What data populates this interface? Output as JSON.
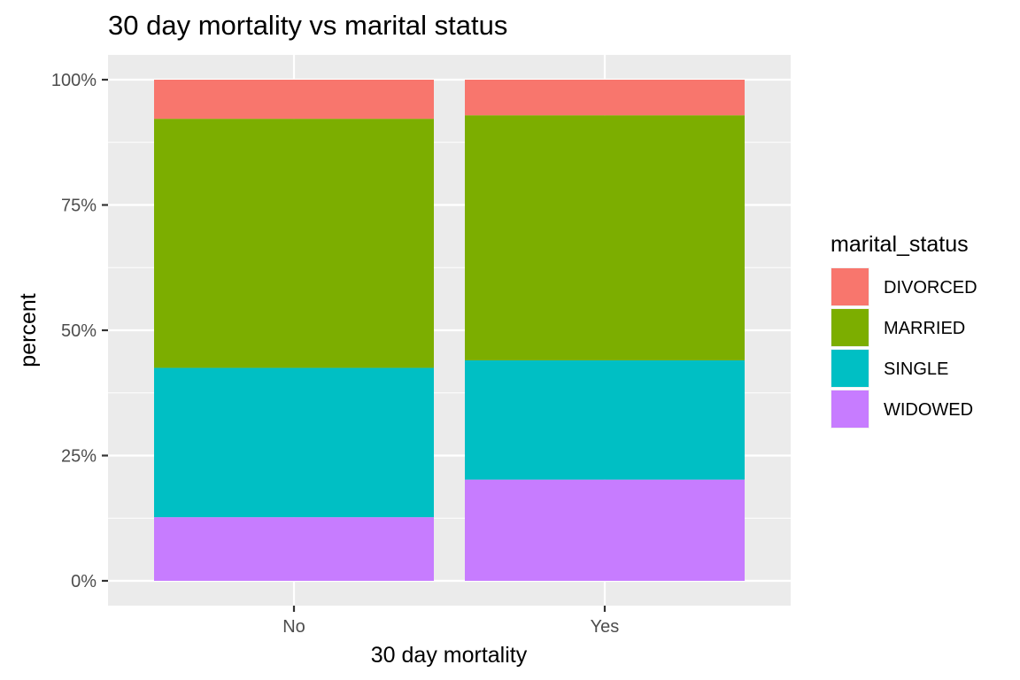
{
  "chart_data": {
    "type": "bar",
    "stacked": true,
    "title": "30 day mortality vs marital status",
    "xlabel": "30 day mortality",
    "ylabel": "percent",
    "categories": [
      "No",
      "Yes"
    ],
    "ylim": [
      0,
      1
    ],
    "y_ticks": [
      0,
      0.25,
      0.5,
      0.75,
      1
    ],
    "y_tick_labels": [
      "0%",
      "25%",
      "50%",
      "75%",
      "100%"
    ],
    "grid": true,
    "legend_title": "marital_status",
    "legend_position": "right",
    "stack_order_top_to_bottom": [
      "DIVORCED",
      "MARRIED",
      "SINGLE",
      "WIDOWED"
    ],
    "series": [
      {
        "name": "DIVORCED",
        "color": "#F8766D",
        "values": [
          0.078,
          0.071
        ]
      },
      {
        "name": "MARRIED",
        "color": "#7CAE00",
        "values": [
          0.497,
          0.489
        ]
      },
      {
        "name": "SINGLE",
        "color": "#00BFC4",
        "values": [
          0.298,
          0.238
        ]
      },
      {
        "name": "WIDOWED",
        "color": "#C77CFF",
        "values": [
          0.127,
          0.202
        ]
      }
    ]
  }
}
